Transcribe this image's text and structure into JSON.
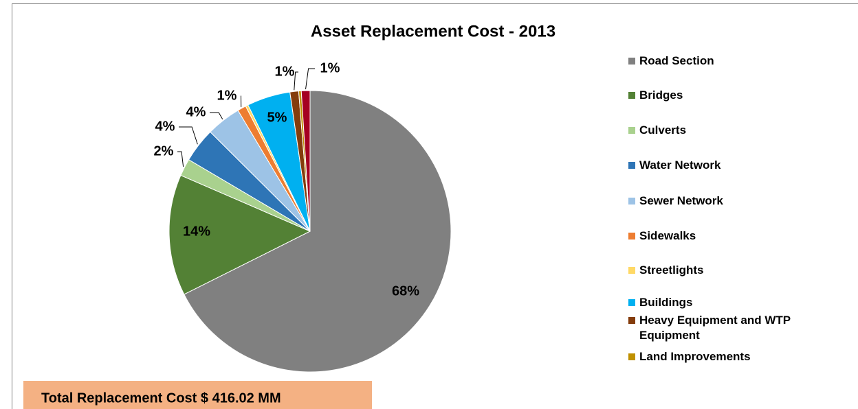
{
  "chart_data": {
    "type": "pie",
    "title": "Asset Replacement Cost - 2013",
    "categories": [
      "Road Section",
      "Bridges",
      "Culverts",
      "Water Network",
      "Sewer Network",
      "Sidewalks",
      "Streetlights",
      "Buildings",
      "Heavy Equipment and WTP Equipment",
      "Land Improvements",
      null
    ],
    "values": [
      68,
      14,
      2,
      4,
      4,
      1,
      0.3,
      5,
      1,
      0.3,
      1
    ],
    "value_labels": [
      "68%",
      "14%",
      "2%",
      "4%",
      "4%",
      "1%",
      null,
      "5%",
      "1%",
      null,
      "1%"
    ],
    "colors": [
      "#808080",
      "#538135",
      "#a9d18e",
      "#2e75b6",
      "#9dc3e6",
      "#ed7d31",
      "#ffd966",
      "#00b0f0",
      "#843c0c",
      "#bf9000",
      "#a50021"
    ],
    "annotation": "Total Replacement Cost $ 416.02 MM"
  }
}
